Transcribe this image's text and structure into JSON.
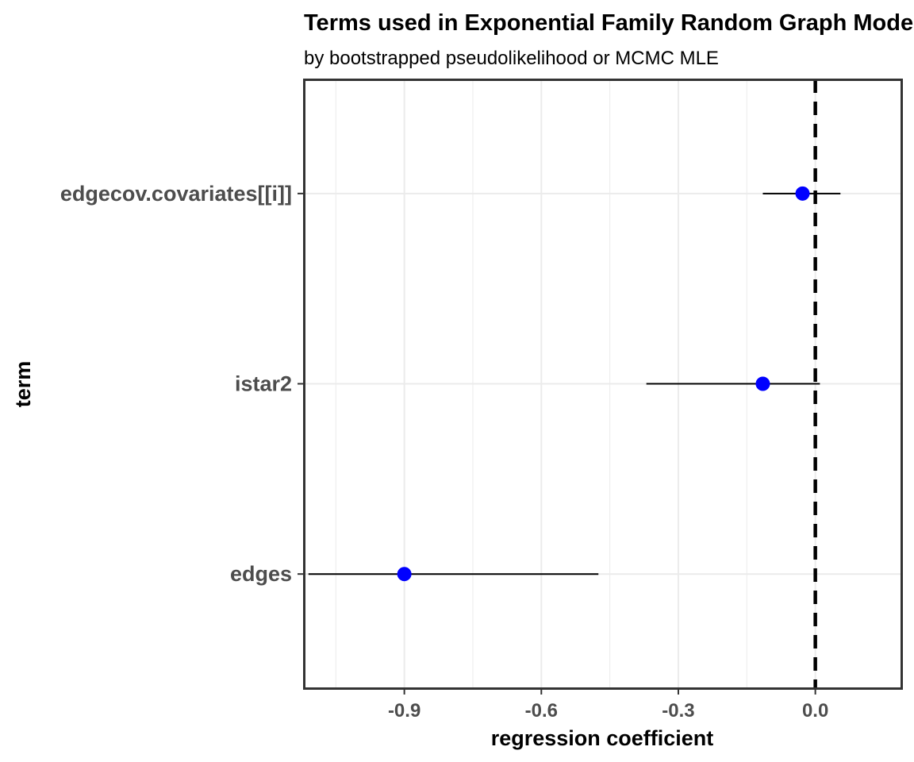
{
  "chart_data": {
    "type": "scatter",
    "title": "Terms used in Exponential Family Random Graph Models",
    "subtitle": "by bootstrapped pseudolikelihood or MCMC MLE",
    "xlabel": "regression coefficient",
    "ylabel": "term",
    "xlim": [
      -1.12,
      0.19
    ],
    "x_ticks": [
      "-0.9",
      "-0.6",
      "-0.3",
      "0.0"
    ],
    "x_tick_values": [
      -0.9,
      -0.6,
      -0.3,
      0.0
    ],
    "categories": [
      "edges",
      "istar2",
      "edgecov.covariates[[i]]"
    ],
    "series": [
      {
        "estimate": [
          -0.9,
          -0.115,
          -0.028
        ],
        "lower": [
          -1.11,
          -0.37,
          -0.115
        ],
        "upper": [
          -0.475,
          0.01,
          0.055
        ]
      }
    ],
    "reference_line": {
      "x": 0.0,
      "style": "dashed"
    },
    "grid": true,
    "legend": "none",
    "colors": {
      "point": "#0000ff",
      "errorbar": "#000000",
      "reference": "#000000",
      "grid": "#ebebeb",
      "border": "#333333"
    }
  }
}
